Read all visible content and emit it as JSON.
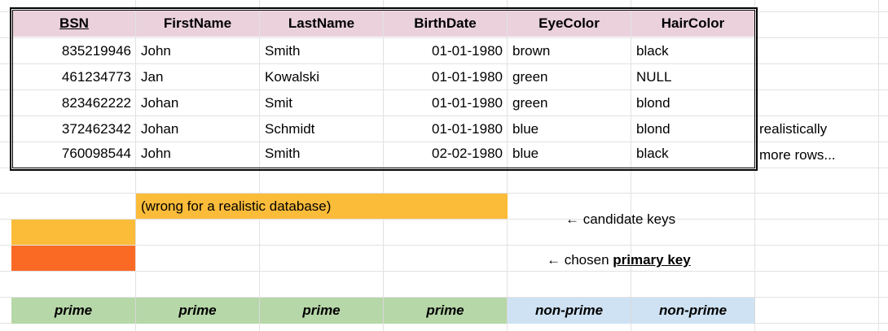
{
  "table": {
    "headers": [
      "BSN",
      "FirstName",
      "LastName",
      "BirthDate",
      "EyeColor",
      "HairColor"
    ],
    "rows": [
      [
        "835219946",
        "John",
        "Smith",
        "01-01-1980",
        "brown",
        "black"
      ],
      [
        "461234773",
        "Jan",
        "Kowalski",
        "01-01-1980",
        "green",
        "NULL"
      ],
      [
        "823462222",
        "Johan",
        "Smit",
        "01-01-1980",
        "green",
        "blond"
      ],
      [
        "372462342",
        "Johan",
        "Schmidt",
        "01-01-1980",
        "blue",
        "blond"
      ],
      [
        "760098544",
        "John",
        "Smith",
        "02-02-1980",
        "blue",
        "black"
      ]
    ]
  },
  "side_notes": {
    "realistically": "realistically",
    "more_rows": "more rows..."
  },
  "candidate_note": "(wrong for a realistic database)",
  "candidate_keys_label": "← candidate keys",
  "primary_key_prefix": "← chosen ",
  "primary_key_word": "primary key",
  "prime_labels": [
    "prime",
    "prime",
    "prime",
    "prime",
    "non-prime",
    "non-prime"
  ],
  "colors": {
    "header_fill": "#ead1dc",
    "candidate_fill": "#fbbc3a",
    "primary_key_fill": "#fa6a24",
    "prime_fill": "#b6d7a8",
    "non_prime_fill": "#cfe2f3"
  }
}
